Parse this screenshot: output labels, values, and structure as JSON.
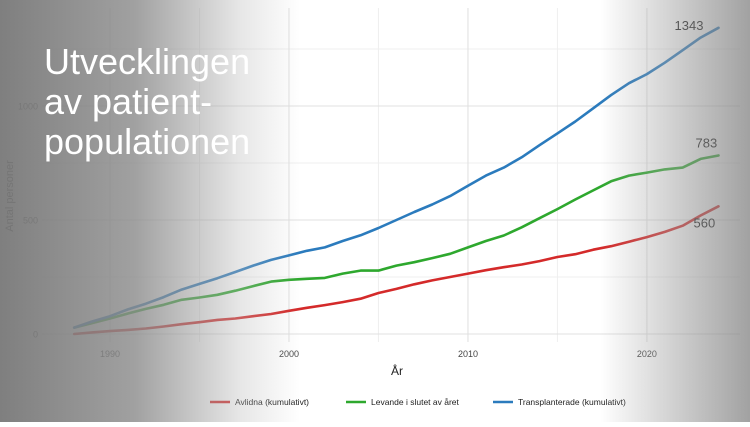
{
  "slide": {
    "title": "Utvecklingen av patient-populationen"
  },
  "chart_data": {
    "type": "line",
    "title": "",
    "xlabel": "År",
    "ylabel": "Antal personer",
    "xlim": [
      1986.2,
      2025.2
    ],
    "ylim": [
      -35,
      1430
    ],
    "x_ticks": [
      1990,
      2000,
      2010,
      2020
    ],
    "y_ticks": [
      0,
      500,
      1000
    ],
    "grid": true,
    "legend_position": "bottom",
    "x": [
      1988,
      1989,
      1990,
      1991,
      1992,
      1993,
      1994,
      1995,
      1996,
      1997,
      1998,
      1999,
      2000,
      2001,
      2002,
      2003,
      2004,
      2005,
      2006,
      2007,
      2008,
      2009,
      2010,
      2011,
      2012,
      2013,
      2014,
      2015,
      2016,
      2017,
      2018,
      2019,
      2020,
      2021,
      2022,
      2023,
      2024
    ],
    "series": [
      {
        "name": "Avlidna (kumulativt)",
        "color": "#d42a2a",
        "values": [
          0,
          7,
          13,
          18,
          24,
          33,
          43,
          52,
          62,
          68,
          78,
          88,
          102,
          115,
          127,
          140,
          155,
          180,
          198,
          218,
          235,
          250,
          265,
          280,
          293,
          305,
          320,
          338,
          350,
          370,
          385,
          405,
          425,
          448,
          475,
          520,
          560
        ],
        "end_label": "560"
      },
      {
        "name": "Levande i slutet av året",
        "color": "#2ea82e",
        "values": [
          28,
          48,
          68,
          90,
          110,
          128,
          150,
          160,
          172,
          190,
          210,
          230,
          238,
          242,
          246,
          265,
          278,
          278,
          300,
          315,
          333,
          352,
          380,
          408,
          432,
          468,
          508,
          548,
          590,
          630,
          670,
          695,
          708,
          722,
          730,
          768,
          783
        ],
        "end_label": "783"
      },
      {
        "name": "Transplanterade (kumulativt)",
        "color": "#2b7bbd",
        "values": [
          28,
          55,
          78,
          108,
          133,
          162,
          195,
          220,
          245,
          272,
          300,
          325,
          345,
          365,
          380,
          408,
          433,
          465,
          500,
          535,
          568,
          605,
          650,
          695,
          730,
          775,
          828,
          880,
          932,
          990,
          1048,
          1100,
          1140,
          1190,
          1245,
          1300,
          1343
        ],
        "end_label": "1343"
      }
    ]
  }
}
